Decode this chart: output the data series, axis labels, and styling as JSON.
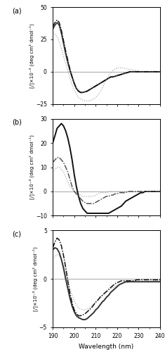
{
  "xlim": [
    190,
    240
  ],
  "panels": [
    {
      "label": "(a)",
      "ylim": [
        -25,
        50
      ],
      "yticks": [
        -25,
        0,
        25,
        50
      ],
      "ylabel": "[/]×10⁻³ (deg cm² dmol⁻¹)",
      "hline": 0,
      "curves": [
        {
          "style": "dotted",
          "color": "#aaaaaa",
          "x": [
            190,
            191,
            192,
            193,
            194,
            195,
            196,
            197,
            198,
            199,
            200,
            201,
            202,
            203,
            204,
            205,
            206,
            207,
            208,
            209,
            210,
            211,
            212,
            213,
            214,
            215,
            216,
            217,
            218,
            219,
            220,
            221,
            222,
            223,
            224,
            225,
            226,
            227,
            228,
            229,
            230,
            231,
            232,
            233,
            234,
            235,
            236,
            237,
            238,
            239,
            240
          ],
          "y": [
            30,
            29,
            27,
            23,
            18,
            12,
            6,
            1,
            -5,
            -10,
            -14,
            -17,
            -20,
            -21,
            -22,
            -22.5,
            -22.5,
            -22.5,
            -22,
            -21,
            -20,
            -18,
            -16,
            -13,
            -9,
            -6,
            -3,
            -1,
            1,
            2,
            3,
            3,
            3,
            3,
            2.5,
            2,
            2,
            1.5,
            1,
            1,
            0.5,
            0,
            0,
            0,
            0,
            0,
            0,
            0,
            0,
            0,
            0
          ]
        },
        {
          "style": "solid",
          "color": "#444444",
          "x": [
            190,
            191,
            192,
            193,
            194,
            195,
            196,
            197,
            198,
            199,
            200,
            201,
            202,
            203,
            204,
            205,
            206,
            207,
            208,
            209,
            210,
            211,
            212,
            213,
            214,
            215,
            216,
            217,
            218,
            219,
            220,
            221,
            222,
            223,
            224,
            225,
            226,
            227,
            228,
            229,
            230,
            231,
            232,
            233,
            234,
            235,
            236,
            237,
            238,
            239,
            240
          ],
          "y": [
            33,
            36,
            38,
            36,
            30,
            22,
            14,
            7,
            1,
            -4,
            -9,
            -13,
            -15,
            -16,
            -16,
            -15.5,
            -15,
            -14,
            -13,
            -12,
            -11,
            -10,
            -9,
            -8,
            -7,
            -6,
            -5,
            -4,
            -4,
            -3.5,
            -3,
            -2.5,
            -2,
            -1.5,
            -1,
            -0.5,
            0,
            0,
            0,
            0,
            0,
            0,
            0,
            0,
            0,
            0,
            0,
            0,
            0,
            0,
            0
          ]
        },
        {
          "style": "dashdot",
          "color": "#111111",
          "x": [
            190,
            191,
            192,
            193,
            194,
            195,
            196,
            197,
            198,
            199,
            200,
            201,
            202,
            203,
            204,
            205,
            206,
            207,
            208,
            209,
            210,
            211,
            212,
            213,
            214,
            215,
            216,
            217,
            218,
            219,
            220,
            221,
            222,
            223,
            224,
            225,
            226,
            227,
            228,
            229,
            230,
            231,
            232,
            233,
            234,
            235,
            236,
            237,
            238,
            239,
            240
          ],
          "y": [
            35,
            38,
            40,
            38,
            32,
            24,
            16,
            9,
            2,
            -4,
            -9,
            -13,
            -15,
            -16,
            -16,
            -15.5,
            -15,
            -14,
            -13,
            -12,
            -11,
            -10,
            -9,
            -8,
            -7,
            -6,
            -5,
            -4,
            -4,
            -3.5,
            -3,
            -2.5,
            -2,
            -1.5,
            -1,
            -0.5,
            0,
            0,
            0,
            0,
            0,
            0,
            0,
            0,
            0,
            0,
            0,
            0,
            0,
            0,
            0
          ]
        }
      ]
    },
    {
      "label": "(b)",
      "ylim": [
        -10,
        30
      ],
      "yticks": [
        -10,
        0,
        10,
        20,
        30
      ],
      "ylabel": "[/]×10⁻³ (deg cm² dmol⁻¹)",
      "hline": 0,
      "curves": [
        {
          "style": "dotted",
          "color": "#aaaaaa",
          "x": [
            190,
            191,
            192,
            193,
            194,
            195,
            196,
            197,
            198,
            199,
            200,
            201,
            202,
            203,
            204,
            205,
            206,
            207,
            208,
            209,
            210,
            211,
            212,
            213,
            214,
            215,
            216,
            217,
            218,
            219,
            220,
            221,
            222,
            223,
            224,
            225,
            226,
            227,
            228,
            229,
            230,
            231,
            232,
            233,
            234,
            235,
            236,
            237,
            238,
            239,
            240
          ],
          "y": [
            8,
            9,
            10,
            10,
            9,
            8,
            6,
            4,
            2,
            1,
            0,
            -0.5,
            -1,
            -1.5,
            -2,
            -2,
            -2,
            -2,
            -2,
            -2,
            -1.5,
            -1,
            -0.5,
            -0.5,
            -0.5,
            -0.5,
            0,
            0,
            0,
            0,
            0,
            0,
            0,
            0,
            0,
            0,
            0,
            0,
            0,
            0,
            0,
            0,
            0,
            0,
            0,
            0,
            0,
            0,
            0,
            0,
            0
          ]
        },
        {
          "style": "solid",
          "color": "#111111",
          "x": [
            190,
            191,
            192,
            193,
            194,
            195,
            196,
            197,
            198,
            199,
            200,
            201,
            202,
            203,
            204,
            205,
            206,
            207,
            208,
            209,
            210,
            211,
            212,
            213,
            214,
            215,
            216,
            217,
            218,
            219,
            220,
            221,
            222,
            223,
            224,
            225,
            226,
            227,
            228,
            229,
            230,
            231,
            232,
            233,
            234,
            235,
            236,
            237,
            238,
            239,
            240
          ],
          "y": [
            20,
            23,
            26,
            27,
            28,
            27,
            25,
            22,
            18,
            13,
            7,
            2,
            -2,
            -5,
            -7,
            -8,
            -9,
            -9,
            -9,
            -9,
            -9,
            -9,
            -9,
            -9,
            -9,
            -9,
            -9,
            -8.5,
            -8,
            -7.5,
            -7,
            -6.5,
            -6,
            -5,
            -4,
            -3.5,
            -3,
            -2.5,
            -2,
            -1.5,
            -1,
            -0.5,
            -0.5,
            0,
            0,
            0,
            0,
            0,
            0,
            0,
            0
          ]
        },
        {
          "style": "dashdot",
          "color": "#555555",
          "x": [
            190,
            191,
            192,
            193,
            194,
            195,
            196,
            197,
            198,
            199,
            200,
            201,
            202,
            203,
            204,
            205,
            206,
            207,
            208,
            209,
            210,
            211,
            212,
            213,
            214,
            215,
            216,
            217,
            218,
            219,
            220,
            221,
            222,
            223,
            224,
            225,
            226,
            227,
            228,
            229,
            230,
            231,
            232,
            233,
            234,
            235,
            236,
            237,
            238,
            239,
            240
          ],
          "y": [
            12,
            13,
            14,
            14,
            13,
            12,
            10,
            8,
            5,
            2,
            0,
            -1,
            -2,
            -3,
            -4,
            -4.5,
            -5,
            -5,
            -5,
            -5,
            -4.5,
            -4,
            -3.5,
            -3,
            -2.5,
            -2,
            -2,
            -1.5,
            -1.5,
            -1,
            -1,
            -0.5,
            -0.5,
            -0.5,
            -0.5,
            0,
            0,
            0,
            0,
            0,
            0,
            0,
            0,
            0,
            0,
            0,
            0,
            0,
            0,
            0,
            0
          ]
        }
      ]
    },
    {
      "label": "(c)",
      "ylim": [
        -5,
        5
      ],
      "yticks": [
        -5,
        0,
        5
      ],
      "ylabel": "[/]×10⁻³ (deg cm² dmol⁻¹)",
      "hline": 0,
      "curves": [
        {
          "style": "dotted",
          "color": "#aaaaaa",
          "x": [
            190,
            191,
            192,
            193,
            194,
            195,
            196,
            197,
            198,
            199,
            200,
            201,
            202,
            203,
            204,
            205,
            206,
            207,
            208,
            209,
            210,
            211,
            212,
            213,
            214,
            215,
            216,
            217,
            218,
            219,
            220,
            221,
            222,
            223,
            224,
            225,
            226,
            227,
            228,
            229,
            230,
            231,
            232,
            233,
            234,
            235,
            236,
            237,
            238,
            239,
            240
          ],
          "y": [
            2,
            2.3,
            2.5,
            2.4,
            2,
            1.4,
            0.6,
            -0.2,
            -1,
            -1.7,
            -2.3,
            -2.7,
            -3,
            -3.1,
            -3.2,
            -3.2,
            -3.1,
            -3,
            -2.8,
            -2.6,
            -2.4,
            -2.2,
            -2,
            -1.8,
            -1.6,
            -1.4,
            -1.2,
            -1,
            -0.9,
            -0.8,
            -0.7,
            -0.6,
            -0.5,
            -0.4,
            -0.4,
            -0.4,
            -0.3,
            -0.3,
            -0.3,
            -0.3,
            -0.3,
            -0.3,
            -0.3,
            -0.3,
            -0.3,
            -0.3,
            -0.3,
            -0.2,
            -0.2,
            -0.2,
            -0.2
          ]
        },
        {
          "style": "solid",
          "color": "#333333",
          "x": [
            190,
            191,
            192,
            193,
            194,
            195,
            196,
            197,
            198,
            199,
            200,
            201,
            202,
            203,
            204,
            205,
            206,
            207,
            208,
            209,
            210,
            211,
            212,
            213,
            214,
            215,
            216,
            217,
            218,
            219,
            220,
            221,
            222,
            223,
            224,
            225,
            226,
            227,
            228,
            229,
            230,
            231,
            232,
            233,
            234,
            235,
            236,
            237,
            238,
            239,
            240
          ],
          "y": [
            3,
            3.2,
            3.1,
            2.7,
            2,
            1.1,
            0,
            -1,
            -2,
            -2.8,
            -3.4,
            -3.8,
            -4,
            -4.1,
            -4.2,
            -4.2,
            -4.1,
            -3.9,
            -3.7,
            -3.5,
            -3.2,
            -3,
            -2.7,
            -2.4,
            -2.2,
            -1.9,
            -1.7,
            -1.4,
            -1.2,
            -1,
            -0.8,
            -0.6,
            -0.5,
            -0.4,
            -0.3,
            -0.3,
            -0.3,
            -0.3,
            -0.3,
            -0.3,
            -0.3,
            -0.3,
            -0.3,
            -0.3,
            -0.3,
            -0.3,
            -0.3,
            -0.3,
            -0.3,
            -0.3,
            -0.3
          ]
        },
        {
          "style": "dashdot",
          "color": "#111111",
          "x": [
            190,
            191,
            192,
            193,
            194,
            195,
            196,
            197,
            198,
            199,
            200,
            201,
            202,
            203,
            204,
            205,
            206,
            207,
            208,
            209,
            210,
            211,
            212,
            213,
            214,
            215,
            216,
            217,
            218,
            219,
            220,
            221,
            222,
            223,
            224,
            225,
            226,
            227,
            228,
            229,
            230,
            231,
            232,
            233,
            234,
            235,
            236,
            237,
            238,
            239,
            240
          ],
          "y": [
            3.2,
            3.8,
            4.2,
            4,
            3.4,
            2.4,
            1.2,
            -0.2,
            -1.5,
            -2.5,
            -3.2,
            -3.6,
            -3.8,
            -3.8,
            -3.7,
            -3.6,
            -3.4,
            -3.2,
            -3,
            -2.7,
            -2.4,
            -2.2,
            -1.9,
            -1.7,
            -1.5,
            -1.3,
            -1.1,
            -0.9,
            -0.7,
            -0.5,
            -0.4,
            -0.3,
            -0.2,
            -0.2,
            -0.2,
            -0.2,
            -0.2,
            -0.2,
            -0.2,
            -0.1,
            -0.1,
            -0.1,
            -0.1,
            -0.1,
            -0.1,
            -0.1,
            -0.1,
            -0.1,
            -0.1,
            -0.1,
            -0.1
          ]
        }
      ]
    }
  ],
  "xlabel": "Wavelength (nm)",
  "xticks": [
    190,
    200,
    210,
    220,
    230,
    240
  ],
  "background_color": "#ffffff",
  "minor_xticks": [
    195,
    205,
    215,
    225,
    235
  ]
}
